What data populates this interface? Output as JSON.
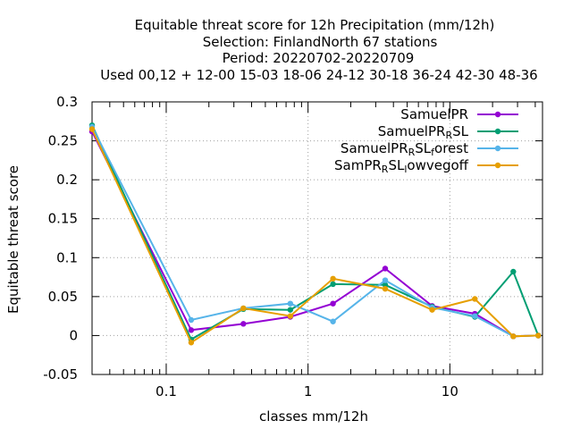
{
  "chart_data": {
    "type": "line",
    "title_lines": [
      "Equitable threat score  for 12h Precipitation (mm/12h)",
      "Selection: FinlandNorth     67 stations",
      "Period: 20220702-20220709",
      "Used  00,12  + 12-00 15-03 18-06 24-12 30-18 36-24 42-30 48-36"
    ],
    "xlabel": "classes mm/12h",
    "ylabel": "Equitable threat score",
    "x_scale": "log",
    "xlim": [
      0.03,
      45
    ],
    "ylim": [
      -0.05,
      0.3
    ],
    "x_ticks": [
      {
        "value": 0.1,
        "label": "0.1"
      },
      {
        "value": 1,
        "label": "1"
      },
      {
        "value": 10,
        "label": "10"
      }
    ],
    "y_ticks": [
      {
        "value": -0.05,
        "label": "-0.05"
      },
      {
        "value": 0,
        "label": "0"
      },
      {
        "value": 0.05,
        "label": "0.05"
      },
      {
        "value": 0.1,
        "label": "0.1"
      },
      {
        "value": 0.15,
        "label": "0.15"
      },
      {
        "value": 0.2,
        "label": "0.2"
      },
      {
        "value": 0.25,
        "label": "0.25"
      },
      {
        "value": 0.3,
        "label": "0.3"
      }
    ],
    "grid": true,
    "legend_position": "top-right",
    "x": [
      0.03,
      0.15,
      0.35,
      0.75,
      1.5,
      3.5,
      7.5,
      15,
      28,
      42
    ],
    "series": [
      {
        "name": "SamuelPR",
        "name_parts": [
          [
            "SamuelPR",
            "n"
          ]
        ],
        "color": "#9400d3",
        "values": [
          0.262,
          0.007,
          0.015,
          0.024,
          0.041,
          0.086,
          0.038,
          0.028,
          -0.001,
          0.0
        ]
      },
      {
        "name": "SamuelPR_RSL",
        "name_parts": [
          [
            "SamuelPR",
            "n"
          ],
          [
            "R",
            "sub"
          ],
          [
            "SL",
            "n"
          ]
        ],
        "color": "#009e73",
        "values": [
          0.27,
          -0.005,
          0.034,
          0.033,
          0.066,
          0.065,
          0.037,
          0.024,
          0.082,
          0.0
        ]
      },
      {
        "name": "SamuelPR_RSL_forest",
        "name_parts": [
          [
            "SamuelPR",
            "n"
          ],
          [
            "R",
            "sub"
          ],
          [
            "SL",
            "n"
          ],
          [
            "f",
            "sub"
          ],
          [
            "orest",
            "n"
          ]
        ],
        "color": "#56b4e9",
        "values": [
          0.268,
          0.02,
          0.035,
          0.041,
          0.018,
          0.071,
          0.036,
          0.025,
          -0.001,
          0.0
        ]
      },
      {
        "name": "SamPR_RSL_lowvegoff",
        "name_parts": [
          [
            "SamPR",
            "n"
          ],
          [
            "R",
            "sub"
          ],
          [
            "SL",
            "n"
          ],
          [
            "l",
            "sub"
          ],
          [
            "owvegoff",
            "n"
          ]
        ],
        "color": "#e69f00",
        "values": [
          0.265,
          -0.009,
          0.035,
          0.025,
          0.073,
          0.06,
          0.033,
          0.047,
          -0.001,
          0.0
        ]
      }
    ]
  }
}
